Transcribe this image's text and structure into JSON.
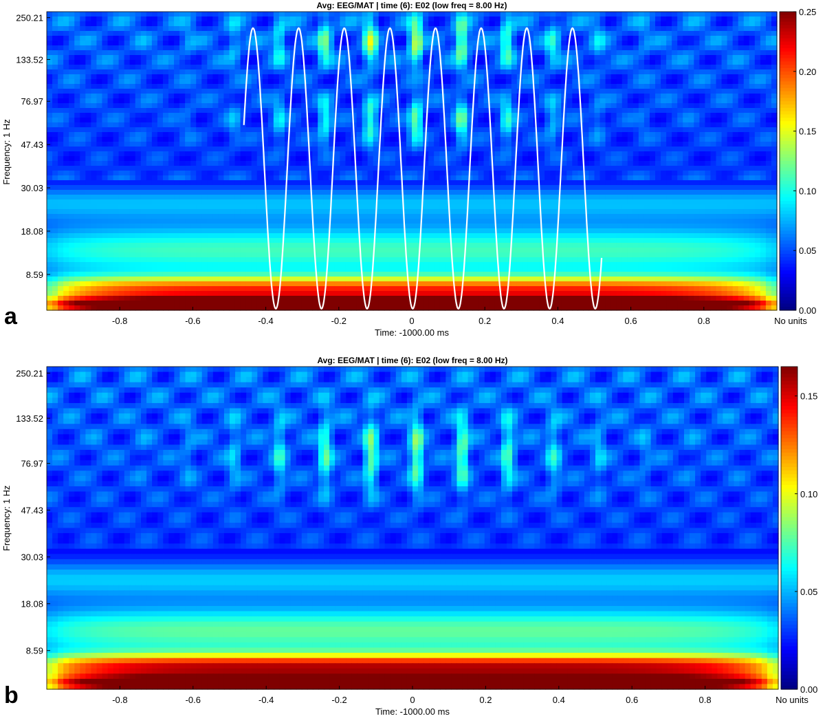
{
  "chart_data": [
    {
      "type": "heatmap",
      "panel_label": "a",
      "title": "Avg: EEG/MAT | time (6): E02    (low freq = 8.00 Hz)",
      "xlabel": "Time: -1000.00 ms",
      "ylabel": "Frequency: 1 Hz",
      "x_ticks": [
        "-0.8",
        "-0.6",
        "-0.4",
        "-0.2",
        "0",
        "0.2",
        "0.4",
        "0.6",
        "0.8"
      ],
      "y_ticks": [
        "250.21",
        "133.52",
        "76.97",
        "47.43",
        "30.03",
        "18.08",
        "8.59"
      ],
      "colorbar": {
        "ticks": [
          "0.25",
          "0.20",
          "0.15",
          "0.10",
          "0.05",
          "0.00"
        ],
        "units": "No units",
        "range": [
          0,
          0.25
        ]
      },
      "colormap": [
        "#00007f",
        "#0000ff",
        "#007fff",
        "#00ffff",
        "#7fff7f",
        "#ffff00",
        "#ff7f00",
        "#ff0000",
        "#7f0000"
      ],
      "overlay": {
        "type": "sinusoid",
        "color": "#ffffff",
        "frequency_hz": 8,
        "x_range": [
          -0.46,
          0.52
        ]
      },
      "xlim": [
        -1,
        1
      ]
    },
    {
      "type": "heatmap",
      "panel_label": "b",
      "title": "Avg: EEG/MAT | time (6): E02    (low freq = 8.00 Hz)",
      "xlabel": "Time: -1000.00 ms",
      "ylabel": "Frequency: 1 Hz",
      "x_ticks": [
        "-0.8",
        "-0.6",
        "-0.4",
        "-0.2",
        "0",
        "0.2",
        "0.4",
        "0.6",
        "0.8"
      ],
      "y_ticks": [
        "250.21",
        "133.52",
        "76.97",
        "47.43",
        "30.03",
        "18.08",
        "8.59"
      ],
      "colorbar": {
        "ticks": [
          "0.15",
          "0.10",
          "0.05",
          "0.00"
        ],
        "units": "No units",
        "range": [
          0,
          0.165
        ]
      },
      "colormap": [
        "#00007f",
        "#0000ff",
        "#007fff",
        "#00ffff",
        "#7fff7f",
        "#ffff00",
        "#ff7f00",
        "#ff0000",
        "#7f0000"
      ],
      "xlim": [
        -1,
        1
      ]
    }
  ]
}
